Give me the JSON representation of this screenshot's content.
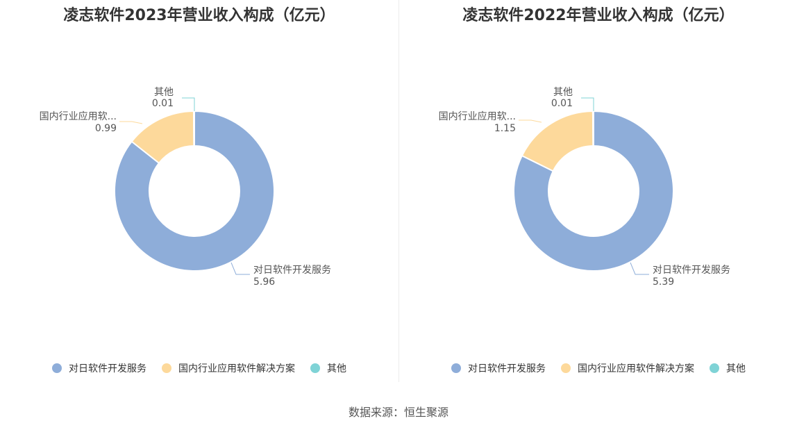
{
  "colors": [
    "#8eadd9",
    "#fdd99b",
    "#7fd3d6"
  ],
  "source": "数据来源：恒生聚源",
  "chart_data": [
    {
      "type": "pie",
      "title": "凌志软件2023年营业收入构成（亿元）",
      "categories": [
        "对日软件开发服务",
        "国内行业应用软件解决方案",
        "其他"
      ],
      "display_labels": [
        "对日软件开发服务",
        "国内行业应用软...",
        "其他"
      ],
      "values": [
        5.96,
        0.99,
        0.01
      ],
      "value_labels": [
        "5.96",
        "0.99",
        "0.01"
      ],
      "legend": [
        "对日软件开发服务",
        "国内行业应用软件解决方案",
        "其他"
      ]
    },
    {
      "type": "pie",
      "title": "凌志软件2022年营业收入构成（亿元）",
      "categories": [
        "对日软件开发服务",
        "国内行业应用软件解决方案",
        "其他"
      ],
      "display_labels": [
        "对日软件开发服务",
        "国内行业应用软...",
        "其他"
      ],
      "values": [
        5.39,
        1.15,
        0.01
      ],
      "value_labels": [
        "5.39",
        "1.15",
        "0.01"
      ],
      "legend": [
        "对日软件开发服务",
        "国内行业应用软件解决方案",
        "其他"
      ]
    }
  ]
}
